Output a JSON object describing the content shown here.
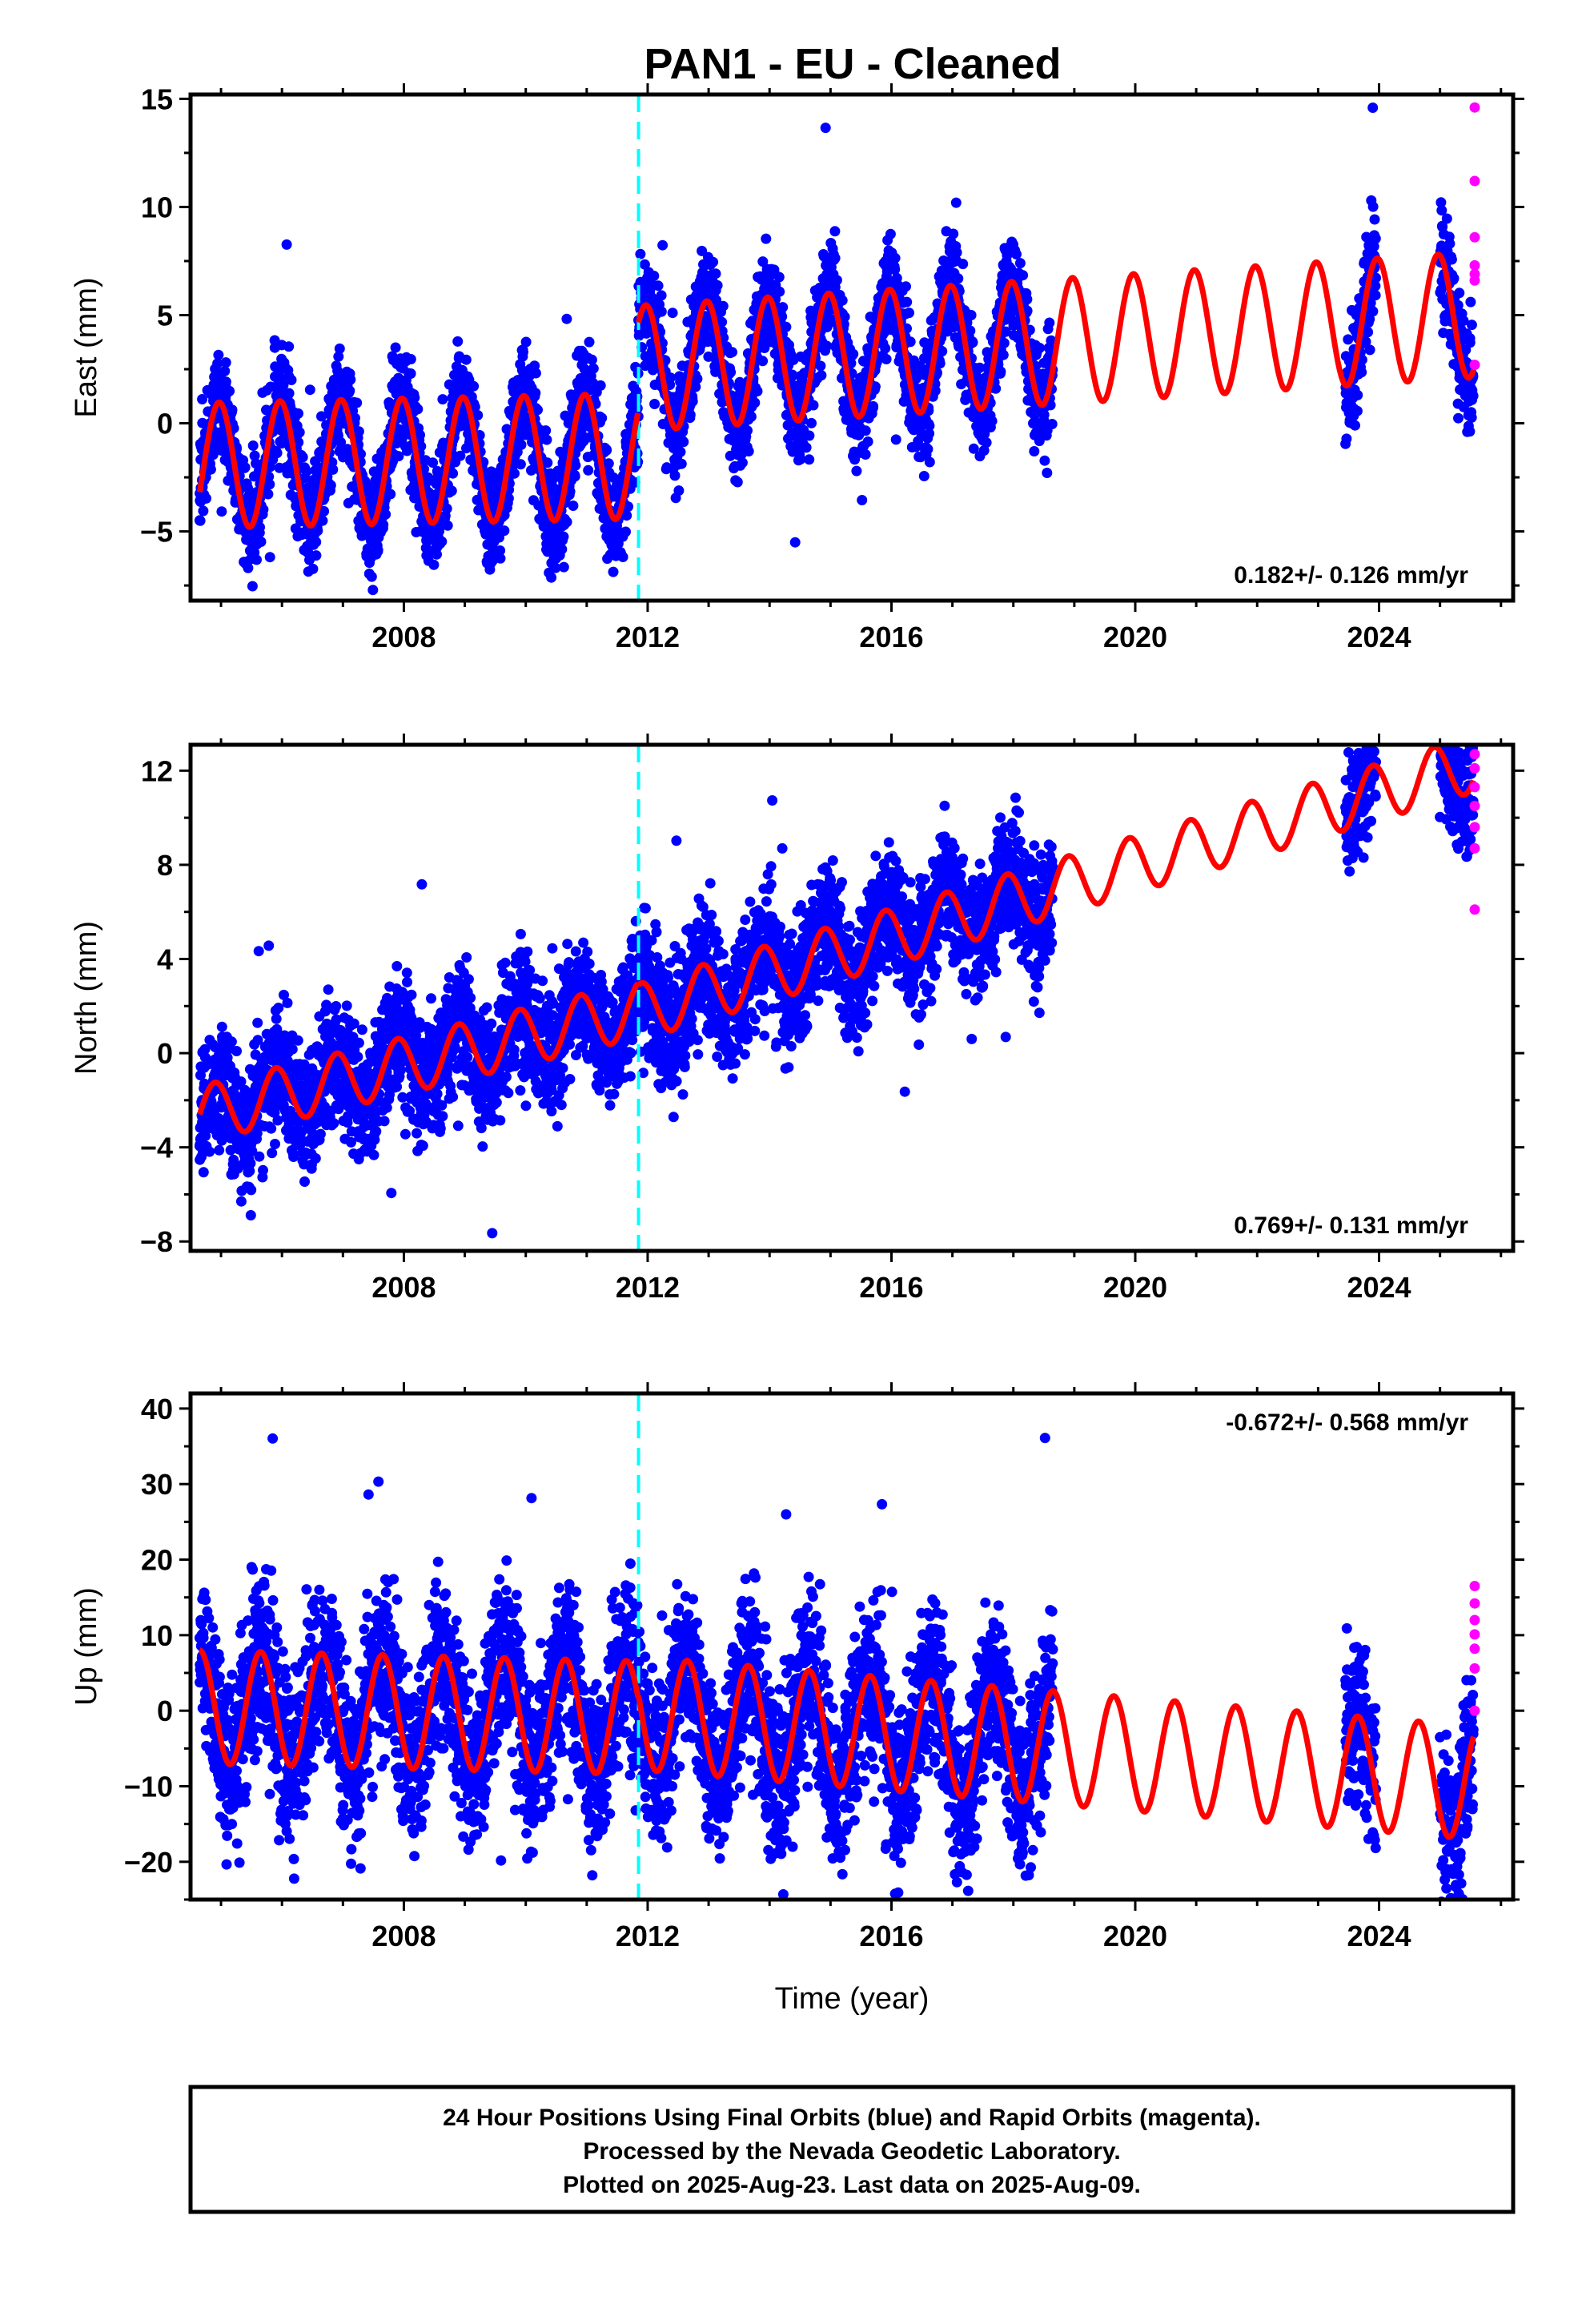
{
  "title": "PAN1  - EU - Cleaned",
  "footer": {
    "line1": "24 Hour Positions Using Final Orbits (blue) and Rapid Orbits (magenta).",
    "line2": "Processed by the Nevada Geodetic Laboratory.",
    "line3": "Plotted on 2025-Aug-23. Last data on 2025-Aug-09."
  },
  "colors": {
    "final_orbits": "#0000ff",
    "rapid_orbits": "#ff00ff",
    "model": "#ff0000",
    "event_line": "#00ffff"
  },
  "chart_data": [
    {
      "type": "scatter",
      "name": "east",
      "ylabel": "East (mm)",
      "xlabel": "",
      "xlim": [
        2004.5,
        2026.2
      ],
      "ylim": [
        -8.2,
        15.2
      ],
      "xticks": [
        2008,
        2012,
        2016,
        2020,
        2024
      ],
      "yticks": [
        -5,
        0,
        5,
        10,
        15
      ],
      "event_line_x": 2011.85,
      "rate_annotation": "0.182+/- 0.126 mm/yr",
      "annotation_position": "bottom-right",
      "data_segments": [
        [
          2004.65,
          2018.65
        ],
        [
          2023.45,
          2023.95
        ],
        [
          2025.0,
          2025.55
        ]
      ],
      "model": {
        "breakpoint": 2011.85,
        "pre_intercept": -1.95,
        "pre_rate": 0.06,
        "post_intercept": 1.25,
        "post_rate": 0.18,
        "amplitude": 2.9,
        "phase": 0.28
      },
      "noise_sd": 1.2,
      "rapid_values": [
        14.6,
        11.2,
        8.6,
        7.3,
        6.9,
        6.6,
        2.7
      ]
    },
    {
      "type": "scatter",
      "name": "north",
      "ylabel": "North (mm)",
      "xlabel": "",
      "xlim": [
        2004.5,
        2026.2
      ],
      "ylim": [
        -8.4,
        13.1
      ],
      "xticks": [
        2008,
        2012,
        2016,
        2020,
        2024
      ],
      "yticks": [
        -8,
        -4,
        0,
        4,
        8,
        12
      ],
      "event_line_x": 2011.85,
      "rate_annotation": "0.769+/- 0.131 mm/yr",
      "annotation_position": "bottom-right",
      "data_segments": [
        [
          2004.65,
          2018.65
        ],
        [
          2023.45,
          2023.95
        ],
        [
          2025.0,
          2025.55
        ]
      ],
      "model": {
        "breakpoint": 2011.85,
        "pre_intercept": -2.6,
        "pre_rate": 0.62,
        "post_intercept": -3.8,
        "post_rate": 0.77,
        "amplitude": 1.2,
        "phase": 0.35
      },
      "noise_sd": 1.3,
      "rapid_values": [
        12.7,
        12.1,
        11.3,
        10.5,
        9.6,
        8.7,
        6.1
      ]
    },
    {
      "type": "scatter",
      "name": "up",
      "ylabel": "Up (mm)",
      "xlabel": "Time (year)",
      "xlim": [
        2004.5,
        2026.2
      ],
      "ylim": [
        -25,
        42
      ],
      "xticks": [
        2008,
        2012,
        2016,
        2020,
        2024
      ],
      "yticks": [
        -20,
        -10,
        0,
        10,
        20,
        30,
        40
      ],
      "event_line_x": 2011.85,
      "rate_annotation": "-0.672+/- 0.568 mm/yr",
      "annotation_position": "top-right",
      "data_segments": [
        [
          2004.65,
          2018.65
        ],
        [
          2023.45,
          2023.95
        ],
        [
          2025.0,
          2025.55
        ]
      ],
      "model": {
        "breakpoint": 2011.85,
        "pre_intercept": 0.5,
        "pre_rate": -0.2,
        "post_intercept": 4.5,
        "post_rate": -0.67,
        "amplitude": 7.5,
        "phase": 0.6
      },
      "noise_sd": 5.5,
      "rapid_values": [
        16.5,
        14.2,
        12.0,
        10.1,
        8.2,
        5.6,
        0.0
      ]
    }
  ]
}
